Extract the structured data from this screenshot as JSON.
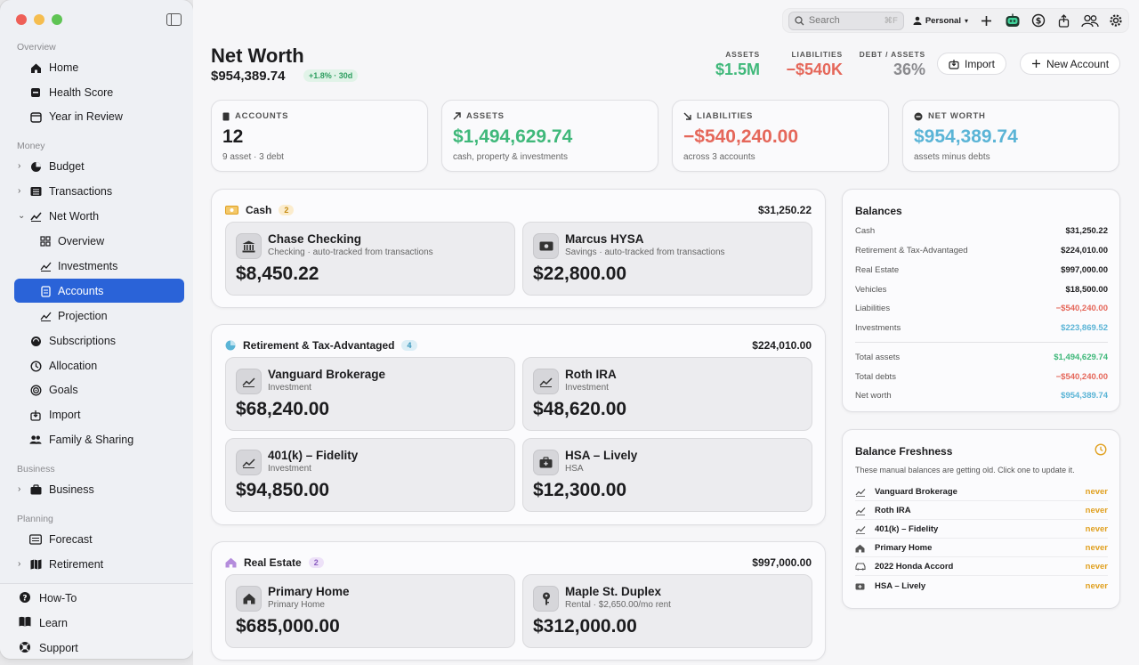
{
  "sidebar": {
    "sections": {
      "overview": "Overview",
      "money": "Money",
      "business": "Business",
      "planning": "Planning"
    },
    "items": {
      "home": "Home",
      "health_score": "Health Score",
      "year_in_review": "Year in Review",
      "budget": "Budget",
      "transactions": "Transactions",
      "net_worth": "Net Worth",
      "nw_overview": "Overview",
      "investments": "Investments",
      "accounts": "Accounts",
      "projection": "Projection",
      "subscriptions": "Subscriptions",
      "allocation": "Allocation",
      "goals": "Goals",
      "import": "Import",
      "family_sharing": "Family & Sharing",
      "business": "Business",
      "forecast": "Forecast",
      "retirement": "Retirement"
    },
    "bottom": {
      "how_to": "How-To",
      "learn": "Learn",
      "support": "Support"
    }
  },
  "toolbar": {
    "search_placeholder": "Search",
    "search_shortcut": "⌘F",
    "profile": "Personal"
  },
  "header": {
    "title": "Net Worth",
    "value": "$954,389.74",
    "trend": "+1.8% · 30d",
    "stats": {
      "assets_label": "ASSETS",
      "assets_value": "$1.5M",
      "liabilities_label": "LIABILITIES",
      "liabilities_value": "−$540K",
      "ratio_label": "DEBT / ASSETS",
      "ratio_value": "36%"
    },
    "import_label": "Import",
    "new_account_label": "New Account"
  },
  "kpis": {
    "accounts": {
      "label": "ACCOUNTS",
      "value": "12",
      "desc": "9 asset · 3 debt"
    },
    "assets": {
      "label": "ASSETS",
      "value": "$1,494,629.74",
      "desc": "cash, property & investments"
    },
    "liabilities": {
      "label": "LIABILITIES",
      "value": "−$540,240.00",
      "desc": "across 3 accounts"
    },
    "net_worth": {
      "label": "NET WORTH",
      "value": "$954,389.74",
      "desc": "assets minus debts"
    }
  },
  "groups": {
    "cash": {
      "name": "Cash",
      "count": "2",
      "total": "$31,250.22",
      "accounts": [
        {
          "name": "Chase Checking",
          "sub": "Checking · auto-tracked from transactions",
          "amount": "$8,450.22"
        },
        {
          "name": "Marcus HYSA",
          "sub": "Savings · auto-tracked from transactions",
          "amount": "$22,800.00"
        }
      ]
    },
    "retirement": {
      "name": "Retirement & Tax-Advantaged",
      "count": "4",
      "total": "$224,010.00",
      "accounts": [
        {
          "name": "Vanguard Brokerage",
          "sub": "Investment",
          "amount": "$68,240.00"
        },
        {
          "name": "Roth IRA",
          "sub": "Investment",
          "amount": "$48,620.00"
        },
        {
          "name": "401(k) – Fidelity",
          "sub": "Investment",
          "amount": "$94,850.00"
        },
        {
          "name": "HSA – Lively",
          "sub": "HSA",
          "amount": "$12,300.00"
        }
      ]
    },
    "real_estate": {
      "name": "Real Estate",
      "count": "2",
      "total": "$997,000.00",
      "accounts": [
        {
          "name": "Primary Home",
          "sub": "Primary Home",
          "amount": "$685,000.00"
        },
        {
          "name": "Maple St. Duplex",
          "sub": "Rental · $2,650.00/mo rent",
          "amount": "$312,000.00"
        }
      ]
    }
  },
  "balances": {
    "title": "Balances",
    "rows": [
      {
        "name": "Cash",
        "value": "$31,250.22"
      },
      {
        "name": "Retirement & Tax-Advantaged",
        "value": "$224,010.00"
      },
      {
        "name": "Real Estate",
        "value": "$997,000.00"
      },
      {
        "name": "Vehicles",
        "value": "$18,500.00"
      },
      {
        "name": "Liabilities",
        "value": "−$540,240.00"
      },
      {
        "name": "Investments",
        "value": "$223,869.52"
      }
    ],
    "totals": [
      {
        "name": "Total assets",
        "value": "$1,494,629.74"
      },
      {
        "name": "Total debts",
        "value": "−$540,240.00"
      },
      {
        "name": "Net worth",
        "value": "$954,389.74"
      }
    ]
  },
  "freshness": {
    "title": "Balance Freshness",
    "desc": "These manual balances are getting old. Click one to update it.",
    "rows": [
      {
        "name": "Vanguard Brokerage",
        "status": "never"
      },
      {
        "name": "Roth IRA",
        "status": "never"
      },
      {
        "name": "401(k) – Fidelity",
        "status": "never"
      },
      {
        "name": "Primary Home",
        "status": "never"
      },
      {
        "name": "2022 Honda Accord",
        "status": "never"
      },
      {
        "name": "HSA – Lively",
        "status": "never"
      }
    ]
  },
  "colors": {
    "accent": "#2a63d8",
    "positive": "#3fb87a",
    "negative": "#e5675a",
    "net": "#5ab4d6",
    "stale": "#e0a020"
  }
}
